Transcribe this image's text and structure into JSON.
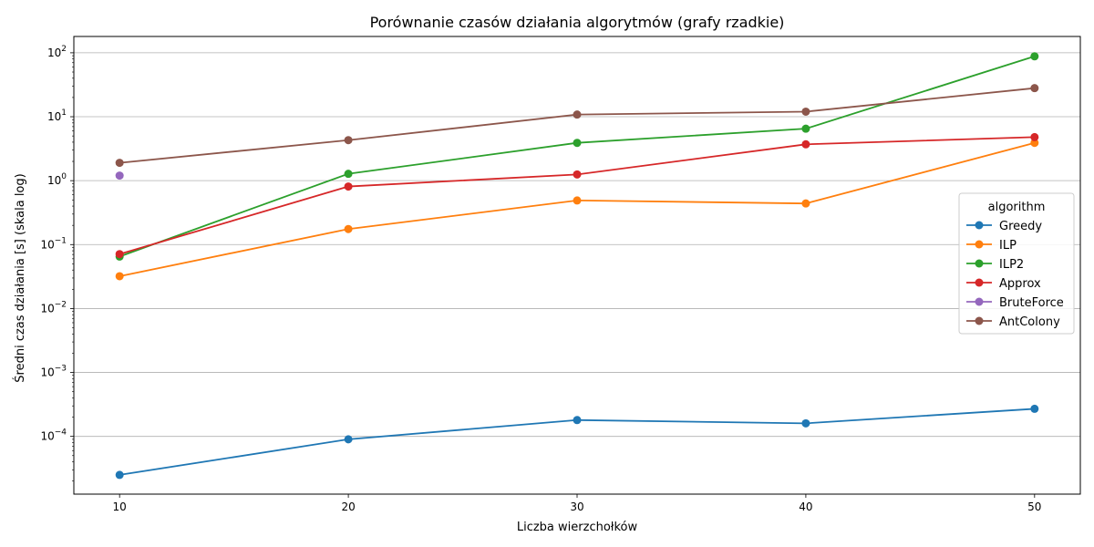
{
  "chart_data": {
    "type": "line",
    "title": "Porównanie czasów działania algorytmów (grafy rzadkie)",
    "xlabel": "Liczba wierzchołków",
    "ylabel": "Średni czas działania [s] (skala log)",
    "yscale": "log",
    "ylim": [
      1.25e-05,
      180
    ],
    "xlim": [
      8,
      52
    ],
    "x_ticks": [
      10,
      20,
      30,
      40,
      50
    ],
    "y_ticks": [
      {
        "value": 0.0001,
        "base": "10",
        "exp": "−4"
      },
      {
        "value": 0.001,
        "base": "10",
        "exp": "−3"
      },
      {
        "value": 0.01,
        "base": "10",
        "exp": "−2"
      },
      {
        "value": 0.1,
        "base": "10",
        "exp": "−1"
      },
      {
        "value": 1,
        "base": "10",
        "exp": "0"
      },
      {
        "value": 10,
        "base": "10",
        "exp": "1"
      },
      {
        "value": 100,
        "base": "10",
        "exp": "2"
      }
    ],
    "grid": "horizontal",
    "legend": {
      "title": "algorithm",
      "placement": "center-right"
    },
    "series": [
      {
        "name": "Greedy",
        "color": "#1f77b4",
        "x": [
          10,
          20,
          30,
          40,
          50
        ],
        "y": [
          2.5e-05,
          9e-05,
          0.00018,
          0.00016,
          0.00027
        ]
      },
      {
        "name": "ILP",
        "color": "#ff7f0e",
        "x": [
          10,
          20,
          30,
          40,
          50
        ],
        "y": [
          0.032,
          0.175,
          0.49,
          0.44,
          3.9
        ]
      },
      {
        "name": "ILP2",
        "color": "#2ca02c",
        "x": [
          10,
          20,
          30,
          40,
          50
        ],
        "y": [
          0.065,
          1.28,
          3.9,
          6.5,
          88
        ]
      },
      {
        "name": "Approx",
        "color": "#d62728",
        "x": [
          10,
          20,
          30,
          40,
          50
        ],
        "y": [
          0.071,
          0.81,
          1.25,
          3.7,
          4.8
        ]
      },
      {
        "name": "BruteForce",
        "color": "#9467bd",
        "x": [
          10
        ],
        "y": [
          1.2
        ]
      },
      {
        "name": "AntColony",
        "color": "#8c564b",
        "x": [
          10,
          20,
          30,
          40,
          50
        ],
        "y": [
          1.9,
          4.3,
          10.8,
          12.0,
          28
        ]
      }
    ]
  }
}
